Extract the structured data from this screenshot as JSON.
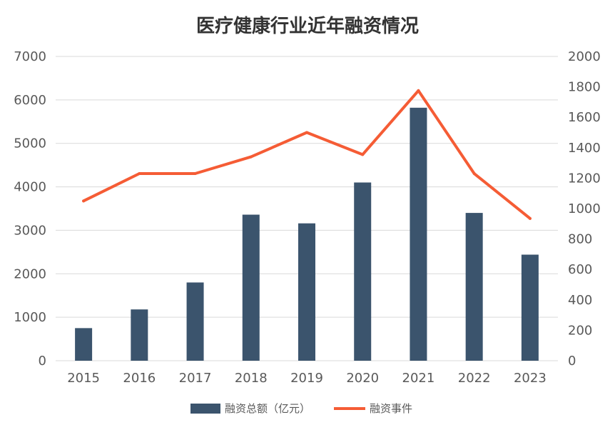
{
  "chart_data": {
    "type": "bar+line",
    "title": "医疗健康行业近年融资情况",
    "categories": [
      "2015",
      "2016",
      "2017",
      "2018",
      "2019",
      "2020",
      "2021",
      "2022",
      "2023"
    ],
    "series": [
      {
        "name": "融资总额（亿元）",
        "type": "bar",
        "axis": "left",
        "color": "#3b546d",
        "values": [
          750,
          1180,
          1800,
          3360,
          3160,
          4100,
          5820,
          3400,
          2440
        ]
      },
      {
        "name": "融资事件",
        "type": "line",
        "axis": "right",
        "color": "#f55c35",
        "values": [
          1050,
          1230,
          1230,
          1340,
          1500,
          1355,
          1775,
          1230,
          935
        ]
      }
    ],
    "y_left": {
      "min": 0,
      "max": 7000,
      "ticks": [
        "0",
        "1000",
        "2000",
        "3000",
        "4000",
        "5000",
        "6000",
        "7000"
      ]
    },
    "y_right": {
      "min": 0,
      "max": 2000,
      "ticks": [
        "0",
        "200",
        "400",
        "600",
        "800",
        "1000",
        "1200",
        "1400",
        "1600",
        "1800",
        "2000"
      ]
    },
    "grid": true,
    "legend_position": "bottom"
  }
}
